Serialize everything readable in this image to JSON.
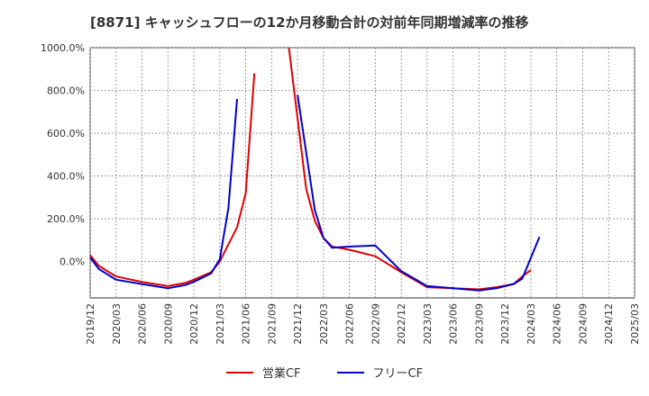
{
  "chart_data": {
    "type": "line",
    "title": "[8871]  キャッシュフローの12か月移動合計の対前年同期増減率の推移",
    "xlabel": "",
    "ylabel": "",
    "ylim": [
      -170,
      1000
    ],
    "yticks": [
      0,
      200,
      400,
      600,
      800,
      1000
    ],
    "ytick_labels": [
      "0.0%",
      "200.0%",
      "400.0%",
      "600.0%",
      "800.0%",
      "1000.0%"
    ],
    "xlim": [
      "2019/12",
      "2025/03"
    ],
    "xtick_labels": [
      "2019/12",
      "2020/03",
      "2020/06",
      "2020/09",
      "2020/12",
      "2021/03",
      "2021/06",
      "2021/09",
      "2021/12",
      "2022/03",
      "2022/06",
      "2022/09",
      "2022/12",
      "2023/03",
      "2023/06",
      "2023/09",
      "2023/12",
      "2024/03",
      "2024/06",
      "2024/09",
      "2024/12",
      "2025/03"
    ],
    "grid": true,
    "legend_position": "bottom",
    "series": [
      {
        "name": "営業CF",
        "color": "#e00000",
        "points": [
          {
            "x": "2019/12",
            "y": 30
          },
          {
            "x": "2020/01",
            "y": -20
          },
          {
            "x": "2020/03",
            "y": -70
          },
          {
            "x": "2020/06",
            "y": -95
          },
          {
            "x": "2020/09",
            "y": -115
          },
          {
            "x": "2020/11",
            "y": -100
          },
          {
            "x": "2020/12",
            "y": -85
          },
          {
            "x": "2021/02",
            "y": -50
          },
          {
            "x": "2021/03",
            "y": 0
          },
          {
            "x": "2021/04",
            "y": 80
          },
          {
            "x": "2021/05",
            "y": 160
          },
          {
            "x": "2021/06",
            "y": 320
          },
          {
            "x": "2021/07",
            "y": 880
          },
          {
            "gap": true
          },
          {
            "x": "2021/11",
            "y": 1000
          },
          {
            "x": "2022/01",
            "y": 340
          },
          {
            "x": "2022/02",
            "y": 190
          },
          {
            "x": "2022/03",
            "y": 110
          },
          {
            "x": "2022/04",
            "y": 70
          },
          {
            "x": "2022/06",
            "y": 55
          },
          {
            "x": "2022/09",
            "y": 25
          },
          {
            "x": "2022/12",
            "y": -50
          },
          {
            "x": "2023/03",
            "y": -120
          },
          {
            "x": "2023/06",
            "y": -125
          },
          {
            "x": "2023/09",
            "y": -130
          },
          {
            "x": "2023/11",
            "y": -120
          },
          {
            "x": "2024/01",
            "y": -105
          },
          {
            "x": "2024/02",
            "y": -70
          },
          {
            "x": "2024/03",
            "y": -40
          }
        ]
      },
      {
        "name": "フリーCF",
        "color": "#0000cc",
        "points": [
          {
            "x": "2019/12",
            "y": 20
          },
          {
            "x": "2020/01",
            "y": -35
          },
          {
            "x": "2020/03",
            "y": -85
          },
          {
            "x": "2020/06",
            "y": -105
          },
          {
            "x": "2020/09",
            "y": -125
          },
          {
            "x": "2020/11",
            "y": -110
          },
          {
            "x": "2020/12",
            "y": -95
          },
          {
            "x": "2021/02",
            "y": -55
          },
          {
            "x": "2021/03",
            "y": 10
          },
          {
            "x": "2021/04",
            "y": 250
          },
          {
            "x": "2021/05",
            "y": 760
          },
          {
            "gap": true
          },
          {
            "x": "2021/12",
            "y": 780
          },
          {
            "x": "2022/02",
            "y": 240
          },
          {
            "x": "2022/03",
            "y": 110
          },
          {
            "x": "2022/04",
            "y": 65
          },
          {
            "x": "2022/06",
            "y": 70
          },
          {
            "x": "2022/09",
            "y": 75
          },
          {
            "x": "2022/12",
            "y": -45
          },
          {
            "x": "2023/03",
            "y": -115
          },
          {
            "x": "2023/06",
            "y": -125
          },
          {
            "x": "2023/09",
            "y": -135
          },
          {
            "x": "2023/11",
            "y": -125
          },
          {
            "x": "2024/01",
            "y": -105
          },
          {
            "x": "2024/02",
            "y": -80
          },
          {
            "x": "2024/04",
            "y": 115
          }
        ]
      }
    ]
  }
}
